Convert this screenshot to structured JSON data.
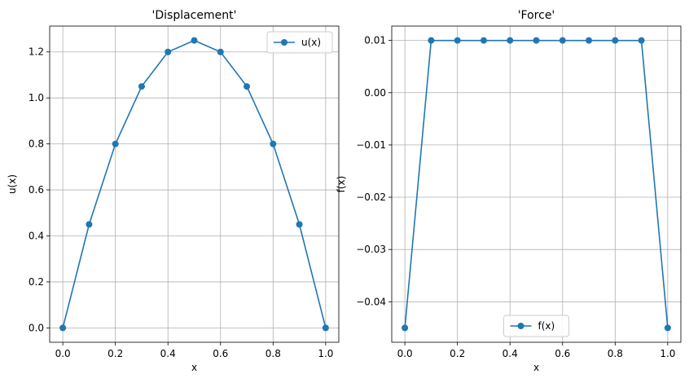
{
  "chart_data": [
    {
      "type": "line",
      "title": "'Displacement'",
      "xlabel": "x",
      "ylabel": "u(x)",
      "xlim": [
        -0.05,
        1.05
      ],
      "ylim": [
        -0.0625,
        1.3125
      ],
      "xticks": [
        0.0,
        0.2,
        0.4,
        0.6,
        0.8,
        1.0
      ],
      "xtick_labels": [
        "0.0",
        "0.2",
        "0.4",
        "0.6",
        "0.8",
        "1.0"
      ],
      "yticks": [
        0.0,
        0.2,
        0.4,
        0.6,
        0.8,
        1.0,
        1.2
      ],
      "ytick_labels": [
        "0.0",
        "0.2",
        "0.4",
        "0.6",
        "0.8",
        "1.0",
        "1.2"
      ],
      "grid": true,
      "legend_position": "upper-right",
      "series": [
        {
          "name": "u(x)",
          "color": "#1f77b4",
          "marker": "circle",
          "x": [
            0.0,
            0.1,
            0.2,
            0.3,
            0.4,
            0.5,
            0.6,
            0.7,
            0.8,
            0.9,
            1.0
          ],
          "y": [
            0.0,
            0.45,
            0.8,
            1.05,
            1.2,
            1.25,
            1.2,
            1.05,
            0.8,
            0.45,
            0.0
          ]
        }
      ]
    },
    {
      "type": "line",
      "title": "'Force'",
      "xlabel": "x",
      "ylabel": "f(x)",
      "xlim": [
        -0.05,
        1.05
      ],
      "ylim": [
        -0.04775,
        0.01275
      ],
      "xticks": [
        0.0,
        0.2,
        0.4,
        0.6,
        0.8,
        1.0
      ],
      "xtick_labels": [
        "0.0",
        "0.2",
        "0.4",
        "0.6",
        "0.8",
        "1.0"
      ],
      "yticks": [
        -0.04,
        -0.03,
        -0.02,
        -0.01,
        0.0,
        0.01
      ],
      "ytick_labels": [
        "−0.04",
        "−0.03",
        "−0.02",
        "−0.01",
        "0.00",
        "0.01"
      ],
      "grid": true,
      "legend_position": "lower-center",
      "series": [
        {
          "name": "f(x)",
          "color": "#1f77b4",
          "marker": "circle",
          "x": [
            0.0,
            0.1,
            0.2,
            0.3,
            0.4,
            0.5,
            0.6,
            0.7,
            0.8,
            0.9,
            1.0
          ],
          "y": [
            -0.045,
            0.01,
            0.01,
            0.01,
            0.01,
            0.01,
            0.01,
            0.01,
            0.01,
            0.01,
            -0.045
          ]
        }
      ]
    }
  ]
}
